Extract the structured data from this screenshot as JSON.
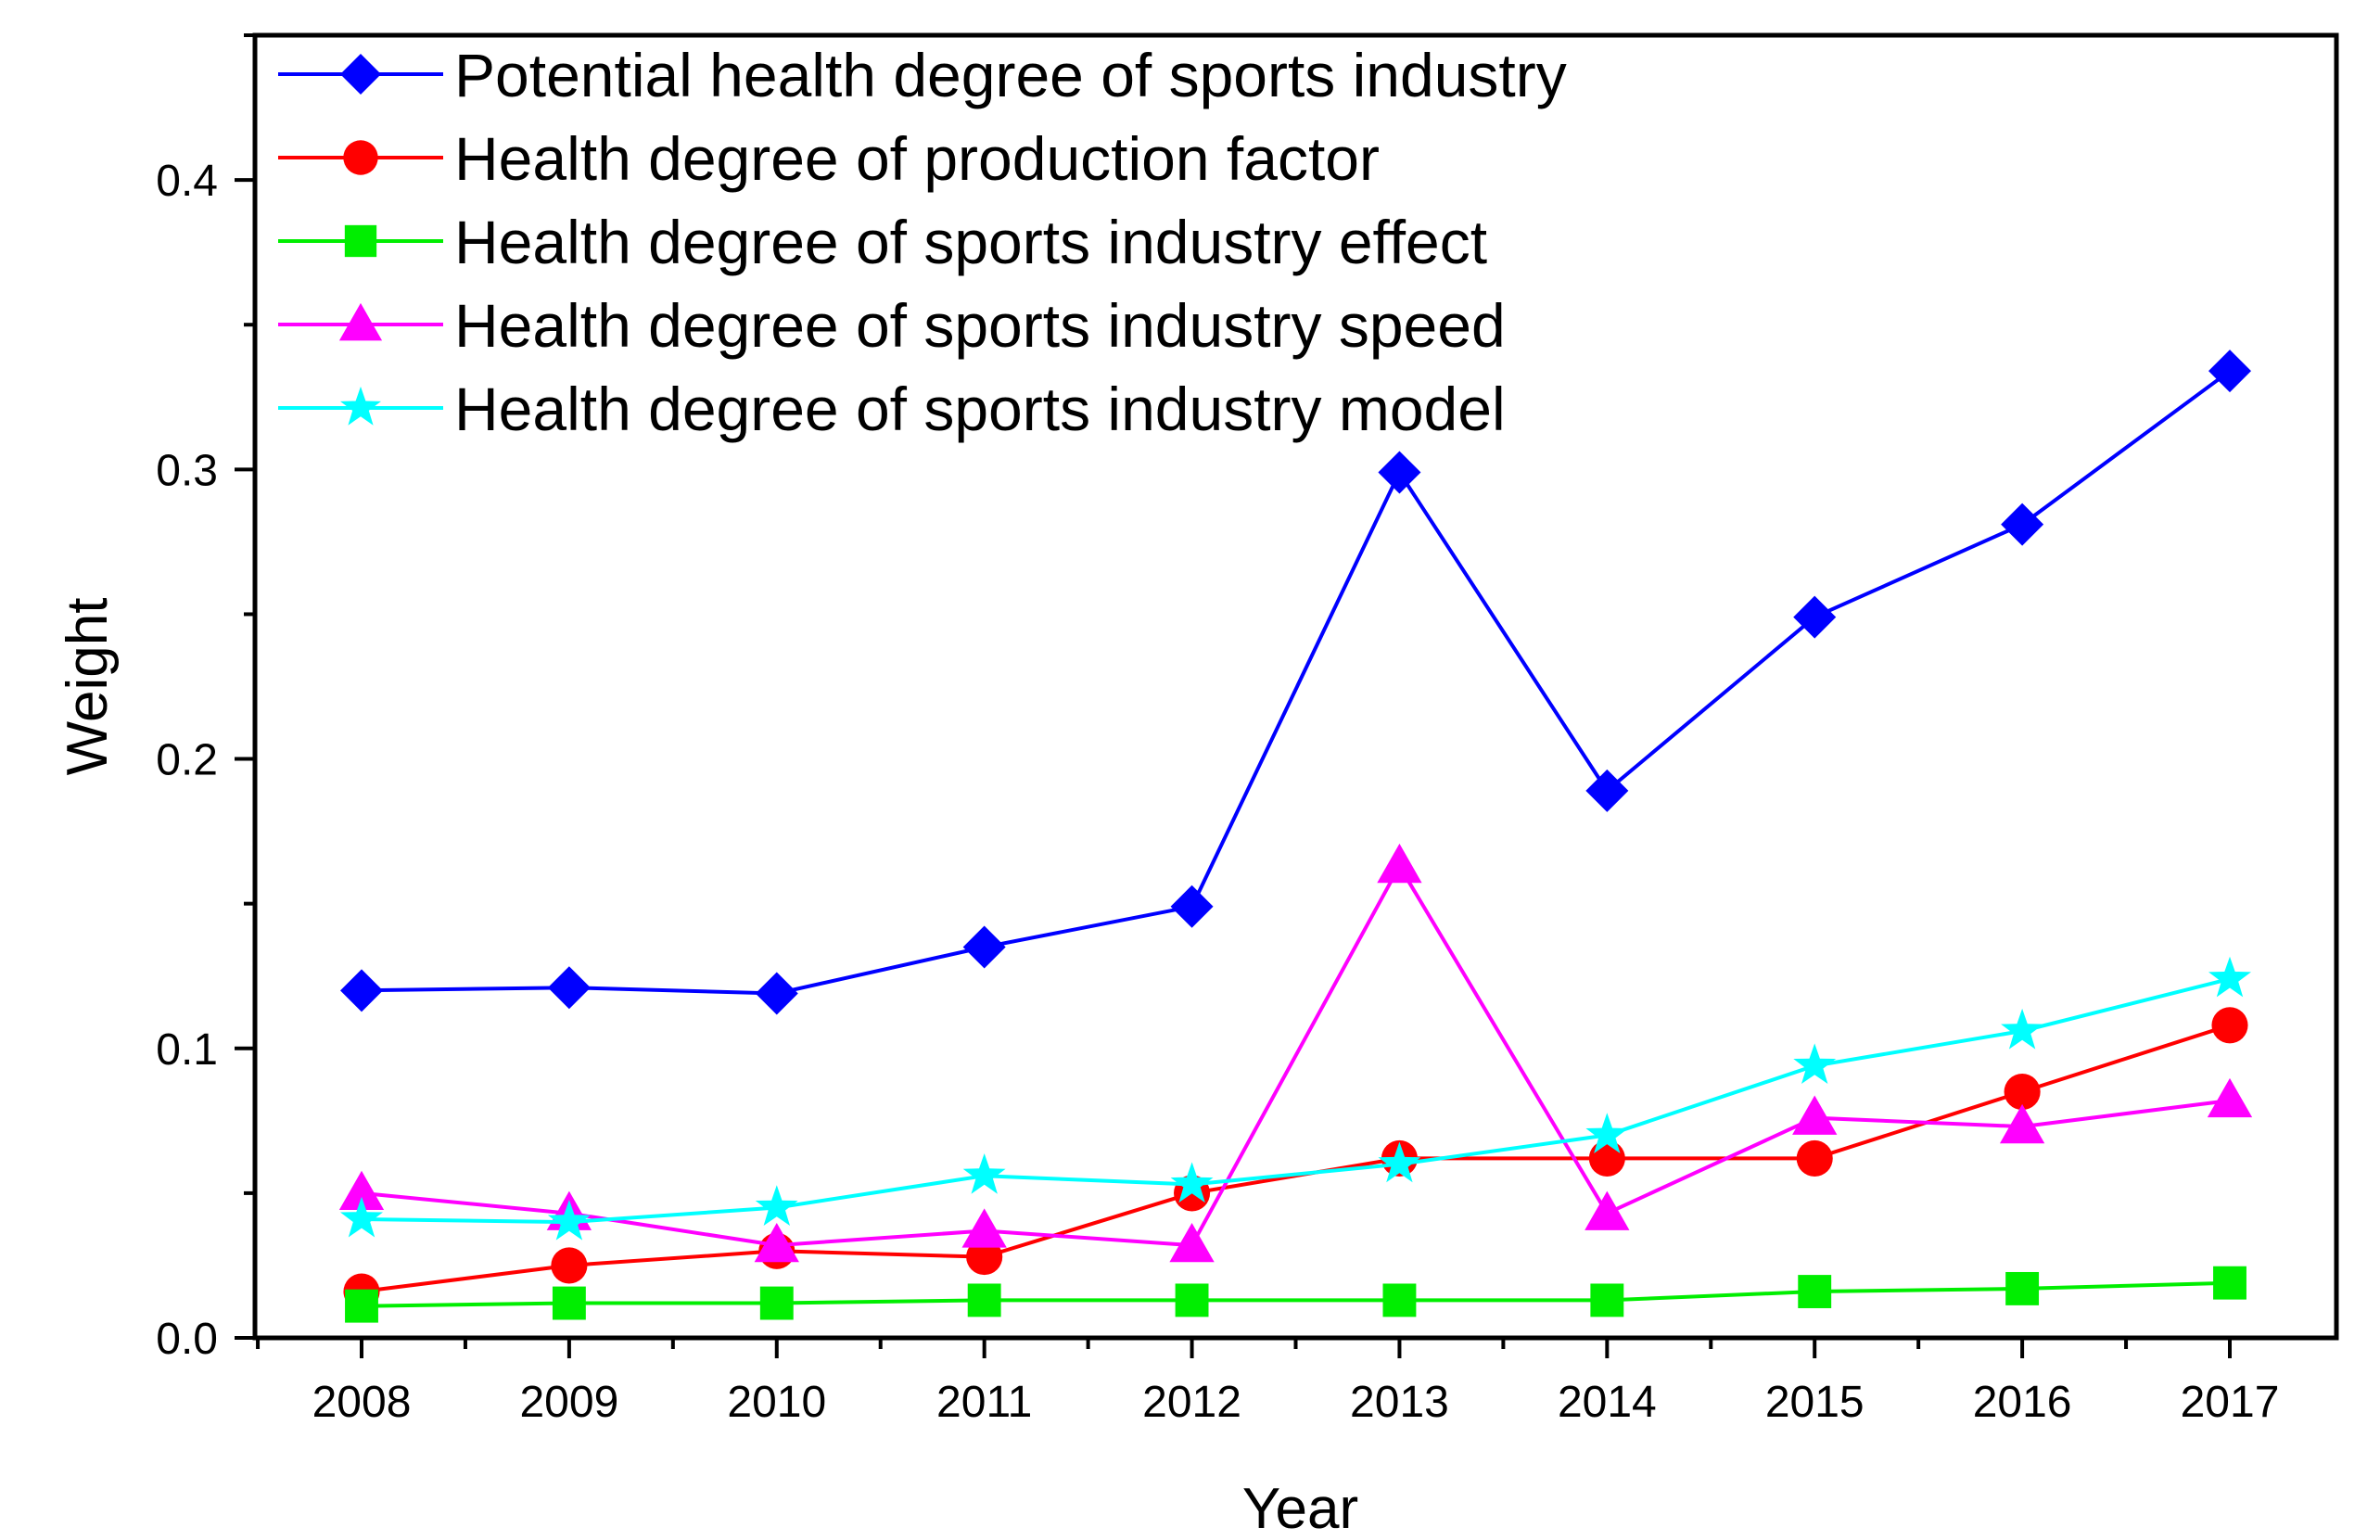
{
  "chart_data": {
    "type": "line",
    "title": "",
    "xlabel": "Year",
    "ylabel": "Weight",
    "categories": [
      "2008",
      "2009",
      "2010",
      "2011",
      "2012",
      "2013",
      "2014",
      "2015",
      "2016",
      "2017"
    ],
    "ylim": [
      0,
      0.45
    ],
    "yticks": [
      0.0,
      0.1,
      0.2,
      0.3,
      0.4
    ],
    "ytick_labels": [
      "0.0",
      "0.1",
      "0.2",
      "0.3",
      "0.4"
    ],
    "grid": false,
    "legend_position": "top-left",
    "series": [
      {
        "name": "Potential health degree of sports industry",
        "color": "#0000FF",
        "marker": "diamond",
        "values": [
          0.12,
          0.121,
          0.119,
          0.135,
          0.149,
          0.299,
          0.189,
          0.249,
          0.281,
          0.334
        ]
      },
      {
        "name": "Health degree of production factor",
        "color": "#FF0000",
        "marker": "circle",
        "values": [
          0.016,
          0.025,
          0.03,
          0.028,
          0.05,
          0.062,
          0.062,
          0.062,
          0.085,
          0.108
        ]
      },
      {
        "name": "Health degree of sports industry effect",
        "color": "#00EE00",
        "marker": "square",
        "values": [
          0.011,
          0.012,
          0.012,
          0.013,
          0.013,
          0.013,
          0.013,
          0.016,
          0.017,
          0.019
        ]
      },
      {
        "name": "Health degree of sports industry speed",
        "color": "#FF00FF",
        "marker": "triangle",
        "values": [
          0.05,
          0.043,
          0.032,
          0.037,
          0.032,
          0.163,
          0.043,
          0.076,
          0.073,
          0.082
        ]
      },
      {
        "name": "Health degree of sports industry model",
        "color": "#00FFFF",
        "marker": "star",
        "values": [
          0.041,
          0.04,
          0.045,
          0.056,
          0.053,
          0.06,
          0.07,
          0.094,
          0.106,
          0.124
        ]
      }
    ]
  }
}
